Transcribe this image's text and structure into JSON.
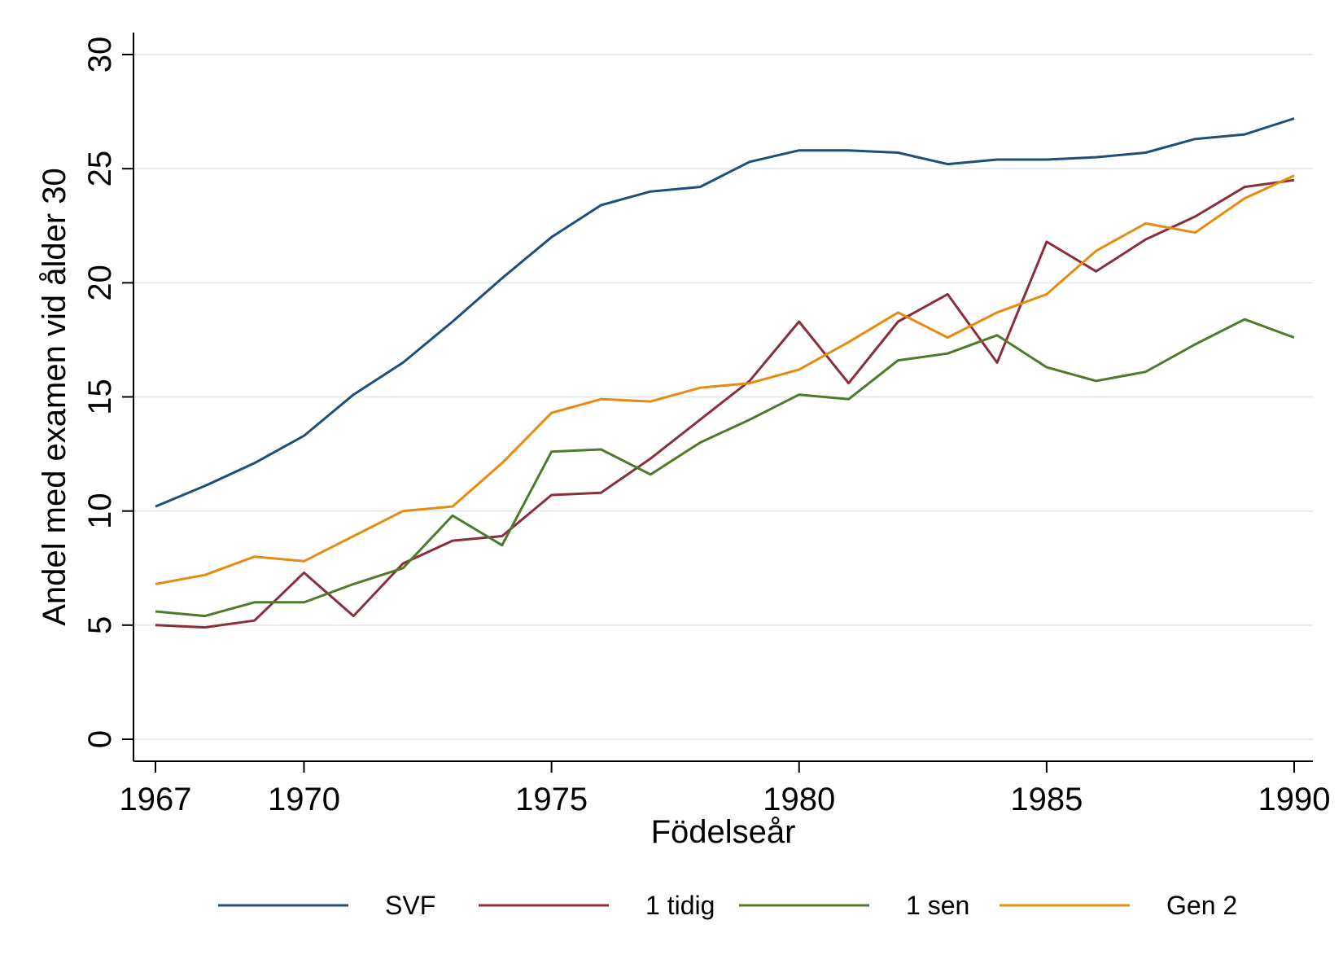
{
  "chart_data": {
    "type": "line",
    "xlabel": "Födelseår",
    "ylabel": "Andel med examen vid ålder 30",
    "xlim": [
      1967,
      1990
    ],
    "ylim": [
      0,
      30
    ],
    "x_ticks": [
      "1967",
      "1970",
      "1975",
      "1980",
      "1985",
      "1990"
    ],
    "y_ticks": [
      "0",
      "5",
      "10",
      "15",
      "20",
      "25",
      "30"
    ],
    "grid": true,
    "legend_position": "bottom",
    "x": [
      1967,
      1968,
      1969,
      1970,
      1971,
      1972,
      1973,
      1974,
      1975,
      1976,
      1977,
      1978,
      1979,
      1980,
      1981,
      1982,
      1983,
      1984,
      1985,
      1986,
      1987,
      1988,
      1989,
      1990
    ],
    "series": [
      {
        "name": "SVF",
        "color": "#1f4e79",
        "values": [
          10.2,
          11.1,
          12.1,
          13.3,
          15.1,
          16.5,
          18.3,
          20.2,
          22.0,
          23.4,
          24.0,
          24.2,
          25.3,
          25.8,
          25.8,
          25.7,
          25.2,
          25.4,
          25.4,
          25.5,
          25.7,
          26.3,
          26.5,
          27.2
        ]
      },
      {
        "name": "1 tidig",
        "color": "#8b2e3c",
        "values": [
          5.0,
          4.9,
          5.2,
          7.3,
          5.4,
          7.7,
          8.7,
          8.9,
          10.7,
          10.8,
          12.3,
          14.0,
          15.7,
          18.3,
          15.6,
          18.3,
          19.5,
          16.5,
          21.8,
          20.5,
          21.9,
          22.9,
          24.2,
          24.5
        ]
      },
      {
        "name": "1 sen",
        "color": "#4e7a2a",
        "values": [
          5.6,
          5.4,
          6.0,
          6.0,
          6.8,
          7.5,
          9.8,
          8.5,
          12.6,
          12.7,
          11.6,
          13.0,
          14.0,
          15.1,
          14.9,
          16.6,
          16.9,
          17.7,
          16.3,
          15.7,
          16.1,
          17.3,
          18.4,
          17.6
        ]
      },
      {
        "name": "Gen 2",
        "color": "#e58b10",
        "values": [
          6.8,
          7.2,
          8.0,
          7.8,
          8.9,
          10.0,
          10.2,
          12.1,
          14.3,
          14.9,
          14.8,
          15.4,
          15.6,
          16.2,
          17.4,
          18.7,
          17.6,
          18.7,
          19.5,
          21.4,
          22.6,
          22.2,
          23.7,
          24.7
        ]
      }
    ]
  }
}
